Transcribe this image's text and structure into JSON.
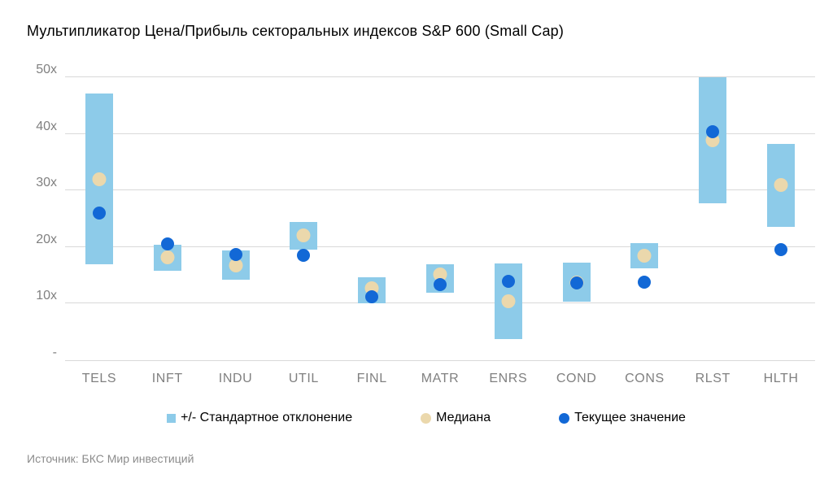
{
  "title": "Мультипликатор Цена/Прибыль секторальных индексов S&P 600 (Small Cap)",
  "source": "Источник: БКС Мир инвестиций",
  "legend": {
    "stddev_label": "+/- Стандартное отклонение",
    "median_label": "Медиана",
    "current_label": "Текущее значение"
  },
  "colors": {
    "bar": "#8dcbe9",
    "median": "#ebd8ac",
    "current": "#1268d6",
    "gridline": "#d9d9d9",
    "axis_text": "#808080",
    "title_text": "#000000",
    "source_text": "#8c8c8c"
  },
  "chart_data": {
    "type": "bar",
    "subtype": "floating-range-with-points",
    "title": "Мультипликатор Цена/Прибыль секторальных индексов S&P 600 (Small Cap)",
    "categories": [
      "TELS",
      "INFT",
      "INDU",
      "UTIL",
      "FINL",
      "MATR",
      "ENRS",
      "COND",
      "CONS",
      "RLST",
      "HLTH"
    ],
    "series": [
      {
        "name": "+/- Стандартное отклонение",
        "kind": "range",
        "low": [
          17.0,
          15.8,
          14.2,
          19.5,
          10.0,
          11.9,
          3.8,
          10.3,
          16.3,
          27.7,
          23.5
        ],
        "high": [
          47.2,
          20.4,
          19.4,
          24.4,
          14.7,
          17.0,
          17.1,
          17.3,
          20.7,
          50.0,
          38.2
        ]
      },
      {
        "name": "Медиана",
        "kind": "point",
        "values": [
          32.0,
          18.2,
          16.8,
          22.0,
          12.7,
          15.1,
          10.4,
          13.7,
          18.4,
          38.9,
          31.0
        ]
      },
      {
        "name": "Текущее значение",
        "kind": "point",
        "values": [
          26.0,
          20.6,
          18.7,
          18.6,
          11.2,
          13.3,
          14.0,
          13.7,
          13.8,
          40.4,
          19.6
        ]
      }
    ],
    "xlabel": "",
    "ylabel": "",
    "ylim": [
      0,
      50
    ],
    "ytick_values": [
      0,
      10,
      20,
      30,
      40,
      50
    ],
    "ytick_labels": [
      "-",
      "10x",
      "20x",
      "30x",
      "40x",
      "50x"
    ],
    "grid": true,
    "legend_position": "bottom"
  }
}
